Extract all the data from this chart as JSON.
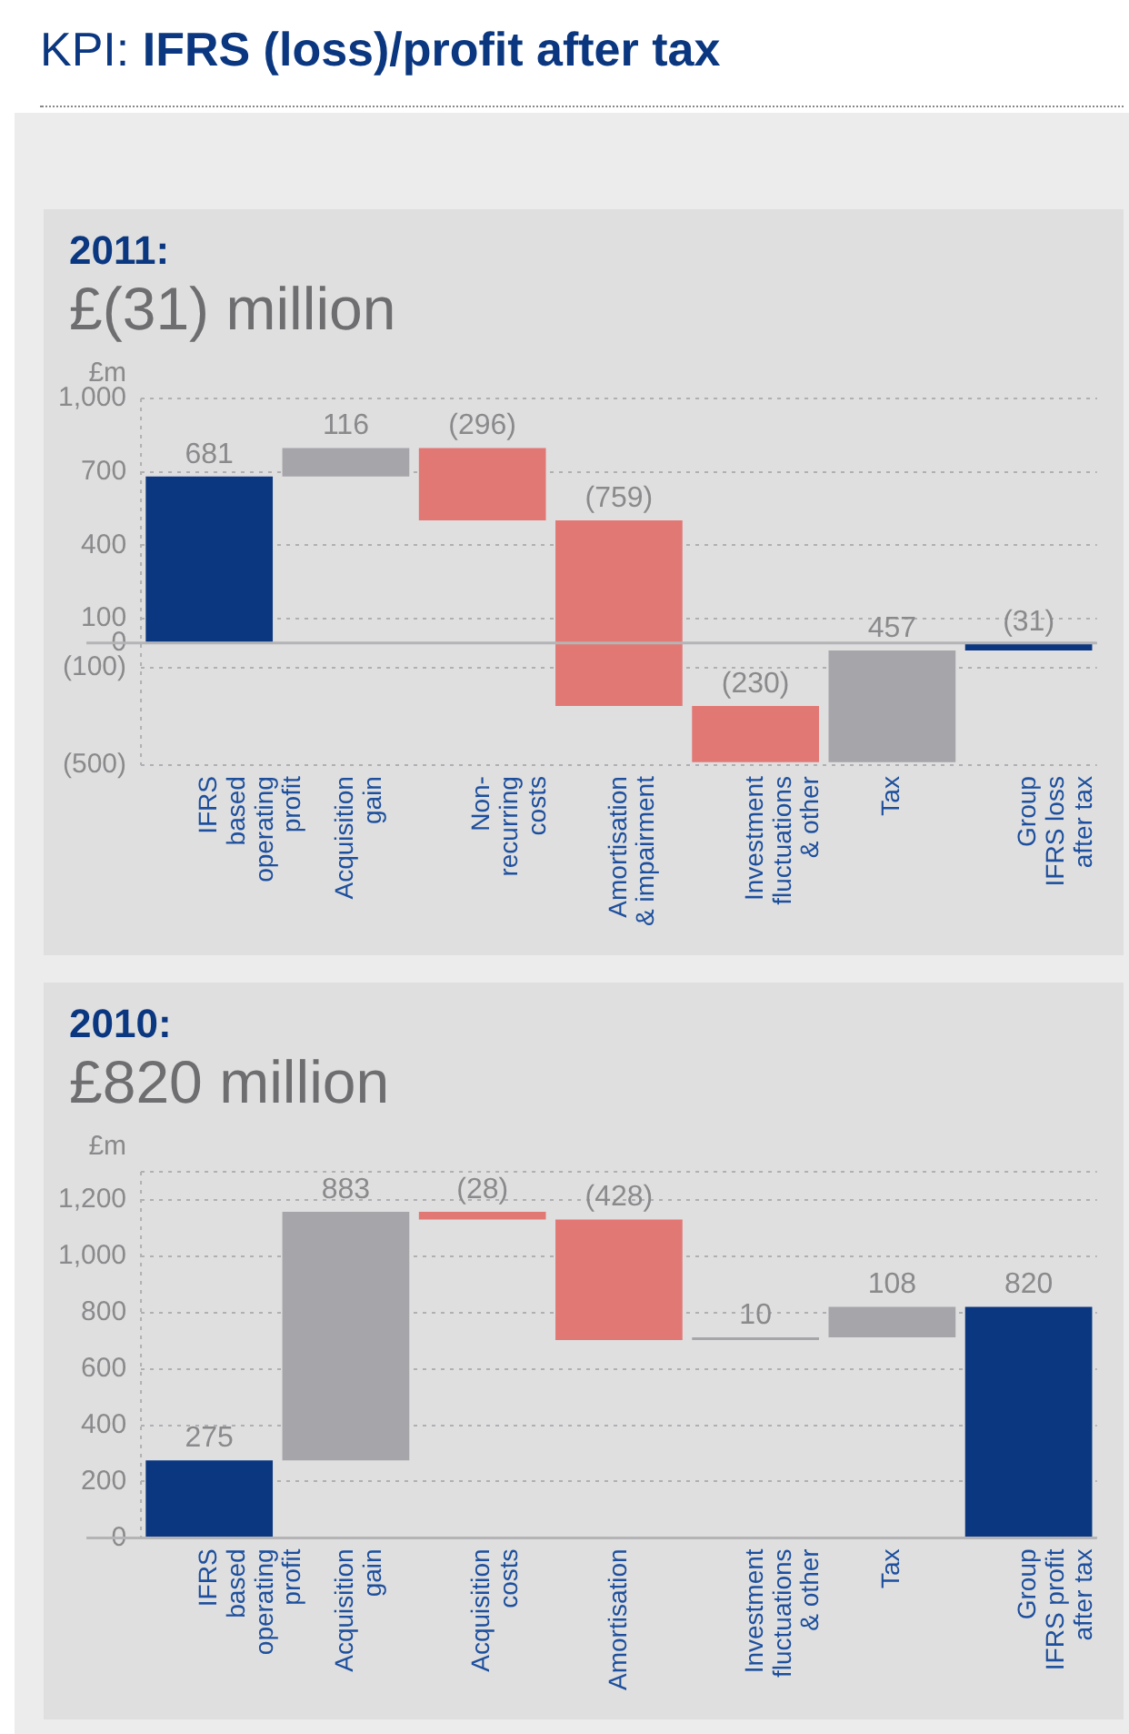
{
  "chart_data": [
    {
      "type": "bar",
      "title": "2011:",
      "subtitle": "£(31) million",
      "ylabel": "£m",
      "annotations": [
        "KPI: IFRS (loss)/profit after tax"
      ],
      "categories": [
        "IFRS\nbased\noperating\nprofit",
        "Acquisition\ngain",
        "Non-\nrecurring\ncosts",
        "Amortisation\n& impairment",
        "Investment\nfluctuations\n& other",
        "Tax",
        "Group\nIFRS loss\nafter tax"
      ],
      "values": [
        681,
        116,
        -296,
        -759,
        -230,
        457,
        -31
      ],
      "base": [
        0,
        681,
        797,
        501,
        -258,
        -488,
        0
      ],
      "colors": [
        "#0a3780",
        "#a6a6aa",
        "#e27874",
        "#e27874",
        "#e27874",
        "#a6a6aa",
        "#0a3780"
      ],
      "value_labels": [
        "681",
        "116",
        "(296)",
        "(759)",
        "(230)",
        "457",
        "(31)"
      ],
      "ylim": [
        -500,
        1000
      ],
      "yticks": [
        {
          "value": -500,
          "label": "(500)"
        },
        {
          "value": -100,
          "label": "(100)"
        },
        0,
        100,
        400,
        700,
        {
          "value": 1000,
          "label": "1,000"
        }
      ],
      "grid": "y"
    },
    {
      "type": "bar",
      "title": "2010:",
      "subtitle": "£820 million",
      "ylabel": "£m",
      "categories": [
        "IFRS\nbased\noperating\nprofit",
        "Acquisition\ngain",
        "Acquisition\ncosts",
        "Amortisation",
        "Investment\nfluctuations\n& other",
        "Tax",
        "Group\nIFRS profit\nafter tax"
      ],
      "values": [
        275,
        883,
        -28,
        -428,
        10,
        108,
        820
      ],
      "base": [
        0,
        275,
        1158,
        1130,
        702,
        712,
        0
      ],
      "colors": [
        "#0a3780",
        "#a6a6aa",
        "#e27874",
        "#e27874",
        "#a6a6aa",
        "#a6a6aa",
        "#0a3780"
      ],
      "value_labels": [
        "275",
        "883",
        "(28)",
        "(428)",
        "10",
        "108",
        "820"
      ],
      "ylim": [
        0,
        1300
      ],
      "yticks": [
        0,
        200,
        400,
        600,
        800,
        {
          "value": 1000,
          "label": "1,000"
        },
        {
          "value": 1200,
          "label": "1,200"
        }
      ],
      "grid": "y"
    }
  ]
}
